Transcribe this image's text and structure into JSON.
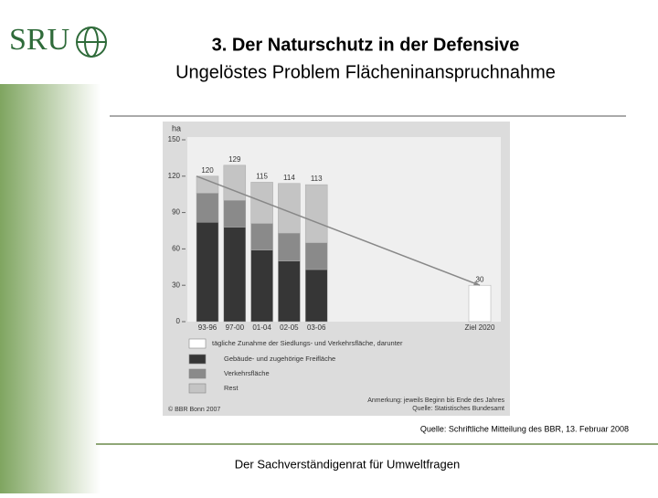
{
  "logo": "SRU",
  "title": "3. Der Naturschutz in der Defensive",
  "subtitle": "Ungelöstes Problem Flächeninanspruchnahme",
  "source": "Quelle: Schriftliche Mitteilung des BBR, 13. Februar 2008",
  "footer": "Der Sachverständigenrat für Umweltfragen",
  "chart_data": {
    "type": "stacked_bar",
    "y_label": "ha",
    "categories": [
      "93-96",
      "97-00",
      "01-04",
      "02-05",
      "03-06",
      null,
      null,
      null,
      null,
      null,
      "Ziel 2020"
    ],
    "series": [
      {
        "name": "tägliche Zunahme der Siedlungs- und Verkehrsfläche, darunter",
        "color": "#ffffff",
        "values": [
          null,
          null,
          null,
          null,
          null,
          null,
          null,
          null,
          null,
          null,
          30
        ]
      },
      {
        "name": "Gebäude- und zugehörige Freifläche",
        "color": "#363636",
        "values": [
          82,
          78,
          59,
          50,
          43,
          null,
          null,
          null,
          null,
          null,
          null
        ]
      },
      {
        "name": "Verkehrsfläche",
        "color": "#8a8a8a",
        "values": [
          24,
          22,
          22,
          23,
          22,
          null,
          null,
          null,
          null,
          null,
          null
        ]
      },
      {
        "name": "Rest",
        "color": "#c4c4c4",
        "values": [
          14,
          29,
          34,
          41,
          48,
          null,
          null,
          null,
          null,
          null,
          null
        ]
      }
    ],
    "totals": [
      120,
      129,
      115,
      114,
      113,
      null,
      null,
      null,
      null,
      null,
      30
    ],
    "ylim": [
      0,
      150
    ],
    "yticks": [
      0,
      30,
      60,
      90,
      120,
      150
    ],
    "grid": false,
    "copyright": "© BBR Bonn 2007",
    "note": "Anmerkung: jeweils Beginn bis Ende des Jahres",
    "chart_source": "Quelle: Statistisches Bundesamt"
  }
}
